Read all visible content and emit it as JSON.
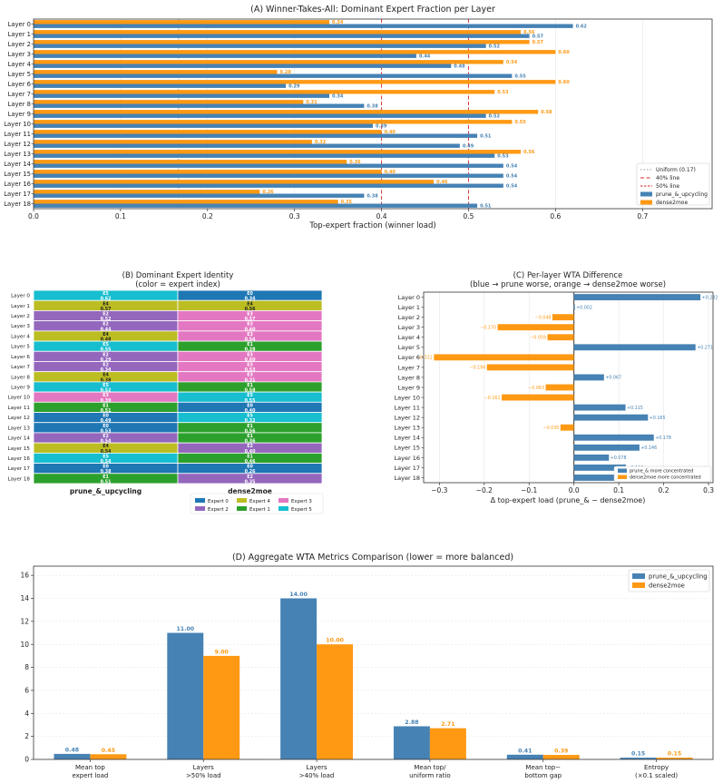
{
  "colors": {
    "prune": "#4682b4",
    "dense": "#ff9914",
    "uniform_line": "#999999",
    "threshold_line": "#d62728",
    "experts": [
      "#1f77b4",
      "#2ca02c",
      "#9467bd",
      "#e377c2",
      "#bcbd22",
      "#17becf"
    ]
  },
  "chart_data": [
    {
      "id": "A",
      "type": "bar",
      "orientation": "horizontal",
      "title": "(A)  Winner-Takes-All: Dominant Expert Fraction per Layer",
      "xlabel": "Top-expert fraction (winner load)",
      "xlim": [
        0,
        0.78
      ],
      "xticks": [
        "0.0",
        "0.1",
        "0.2",
        "0.3",
        "0.4",
        "0.5",
        "0.6",
        "0.7"
      ],
      "xtick_values": [
        0,
        0.1,
        0.2,
        0.3,
        0.4,
        0.5,
        0.6,
        0.7
      ],
      "grid": "x",
      "legend_position": "lower-right",
      "categories": [
        "Layer 0",
        "Layer 1",
        "Layer 2",
        "Layer 3",
        "Layer 4",
        "Layer 5",
        "Layer 6",
        "Layer 7",
        "Layer 8",
        "Layer 9",
        "Layer 10",
        "Layer 11",
        "Layer 12",
        "Layer 13",
        "Layer 14",
        "Layer 15",
        "Layer 16",
        "Layer 17",
        "Layer 18"
      ],
      "series": [
        {
          "name": "prune_&_upcycling",
          "values": [
            0.62,
            0.57,
            0.52,
            0.44,
            0.48,
            0.55,
            0.29,
            0.34,
            0.38,
            0.52,
            0.39,
            0.51,
            0.49,
            0.53,
            0.54,
            0.54,
            0.54,
            0.38,
            0.51
          ],
          "labels": [
            "0.62",
            "0.57",
            "0.52",
            "0.44",
            "0.48",
            "0.55",
            "0.29",
            "0.34",
            "0.38",
            "0.52",
            "0.39",
            "0.51",
            "0.49",
            "0.53",
            "0.54",
            "0.54",
            "0.54",
            "0.38",
            "0.51"
          ]
        },
        {
          "name": "dense2moe",
          "values": [
            0.34,
            0.56,
            0.57,
            0.6,
            0.54,
            0.28,
            0.6,
            0.53,
            0.31,
            0.58,
            0.55,
            0.4,
            0.32,
            0.56,
            0.36,
            0.4,
            0.46,
            0.26,
            0.35
          ],
          "labels": [
            "0.34",
            "0.56",
            "0.57",
            "0.60",
            "0.54",
            "0.28",
            "0.60",
            "0.53",
            "0.31",
            "0.58",
            "0.55",
            "0.40",
            "0.32",
            "0.56",
            "0.36",
            "0.40",
            "0.46",
            "0.26",
            "0.35"
          ]
        }
      ],
      "reference_lines": [
        {
          "name": "Uniform (0.17)",
          "x": 0.1667,
          "style": "dotted"
        },
        {
          "name": "40% line",
          "x": 0.4,
          "style": "dashed"
        },
        {
          "name": "50% line",
          "x": 0.5,
          "style": "dashed"
        }
      ]
    },
    {
      "id": "B",
      "type": "heatmap",
      "title": "(B)  Dominant Expert Identity",
      "subtitle": "(color = expert index)",
      "rows": [
        "Layer 0",
        "Layer 1",
        "Layer 2",
        "Layer 3",
        "Layer 4",
        "Layer 5",
        "Layer 6",
        "Layer 7",
        "Layer 8",
        "Layer 9",
        "Layer 10",
        "Layer 11",
        "Layer 12",
        "Layer 13",
        "Layer 14",
        "Layer 15",
        "Layer 16",
        "Layer 17",
        "Layer 18"
      ],
      "columns": [
        "prune_&_upcycling",
        "dense2moe"
      ],
      "cells": [
        [
          {
            "expert": 5,
            "label": "E5",
            "value": "0.62"
          },
          {
            "expert": 0,
            "label": "E0",
            "value": "0.34"
          }
        ],
        [
          {
            "expert": 4,
            "label": "E4",
            "value": "0.57"
          },
          {
            "expert": 4,
            "label": "E4",
            "value": "0.56"
          }
        ],
        [
          {
            "expert": 2,
            "label": "E2",
            "value": "0.52"
          },
          {
            "expert": 3,
            "label": "E3",
            "value": "0.57"
          }
        ],
        [
          {
            "expert": 2,
            "label": "E2",
            "value": "0.44"
          },
          {
            "expert": 3,
            "label": "E3",
            "value": "0.60"
          }
        ],
        [
          {
            "expert": 4,
            "label": "E4",
            "value": "0.48"
          },
          {
            "expert": 3,
            "label": "E3",
            "value": "0.54"
          }
        ],
        [
          {
            "expert": 5,
            "label": "E5",
            "value": "0.55"
          },
          {
            "expert": 1,
            "label": "E1",
            "value": "0.28"
          }
        ],
        [
          {
            "expert": 2,
            "label": "E2",
            "value": "0.29"
          },
          {
            "expert": 3,
            "label": "E3",
            "value": "0.60"
          }
        ],
        [
          {
            "expert": 2,
            "label": "E2",
            "value": "0.34"
          },
          {
            "expert": 3,
            "label": "E3",
            "value": "0.53"
          }
        ],
        [
          {
            "expert": 4,
            "label": "E4",
            "value": "0.38"
          },
          {
            "expert": 3,
            "label": "E3",
            "value": "0.31"
          }
        ],
        [
          {
            "expert": 5,
            "label": "E5",
            "value": "0.52"
          },
          {
            "expert": 1,
            "label": "E1",
            "value": "0.58"
          }
        ],
        [
          {
            "expert": 3,
            "label": "E3",
            "value": "0.39"
          },
          {
            "expert": 5,
            "label": "E5",
            "value": "0.55"
          }
        ],
        [
          {
            "expert": 1,
            "label": "E1",
            "value": "0.51"
          },
          {
            "expert": 0,
            "label": "E0",
            "value": "0.40"
          }
        ],
        [
          {
            "expert": 0,
            "label": "E0",
            "value": "0.49"
          },
          {
            "expert": 5,
            "label": "E5",
            "value": "0.32"
          }
        ],
        [
          {
            "expert": 0,
            "label": "E0",
            "value": "0.53"
          },
          {
            "expert": 1,
            "label": "E1",
            "value": "0.56"
          }
        ],
        [
          {
            "expert": 2,
            "label": "E2",
            "value": "0.54"
          },
          {
            "expert": 1,
            "label": "E1",
            "value": "0.36"
          }
        ],
        [
          {
            "expert": 4,
            "label": "E4",
            "value": "0.54"
          },
          {
            "expert": 2,
            "label": "E2",
            "value": "0.40"
          }
        ],
        [
          {
            "expert": 5,
            "label": "E5",
            "value": "0.54"
          },
          {
            "expert": 1,
            "label": "E1",
            "value": "0.46"
          }
        ],
        [
          {
            "expert": 0,
            "label": "E0",
            "value": "0.38"
          },
          {
            "expert": 0,
            "label": "E0",
            "value": "0.26"
          }
        ],
        [
          {
            "expert": 1,
            "label": "E1",
            "value": "0.51"
          },
          {
            "expert": 2,
            "label": "E2",
            "value": "0.35"
          }
        ]
      ],
      "legend": [
        "Expert 0",
        "Expert 1",
        "Expert 2",
        "Expert 3",
        "Expert 4",
        "Expert 5"
      ],
      "legend_position": "bottom"
    },
    {
      "id": "C",
      "type": "bar",
      "orientation": "horizontal",
      "title": "(C)  Per-layer WTA Difference",
      "subtitle": "(blue → prune worse, orange → dense2moe worse)",
      "xlabel": "Δ top-expert load  (prune_& − dense2moe)",
      "xlim": [
        -0.335,
        0.31
      ],
      "xticks": [
        "−0.3",
        "−0.2",
        "−0.1",
        "0.0",
        "0.1",
        "0.2",
        "0.3"
      ],
      "xtick_values": [
        -0.3,
        -0.2,
        -0.1,
        0,
        0.1,
        0.2,
        0.3
      ],
      "grid": "x",
      "legend_position": "lower-right",
      "legend": [
        "prune_& more concentrated",
        "dense2moe more concentrated"
      ],
      "categories": [
        "Layer 0",
        "Layer 1",
        "Layer 2",
        "Layer 3",
        "Layer 4",
        "Layer 5",
        "Layer 6",
        "Layer 7",
        "Layer 8",
        "Layer 9",
        "Layer 10",
        "Layer 11",
        "Layer 12",
        "Layer 13",
        "Layer 14",
        "Layer 15",
        "Layer 16",
        "Layer 17",
        "Layer 18"
      ],
      "values": [
        0.282,
        0.002,
        -0.048,
        -0.17,
        -0.059,
        0.271,
        -0.312,
        -0.194,
        0.067,
        -0.063,
        -0.161,
        0.115,
        0.165,
        -0.03,
        0.178,
        0.146,
        0.078,
        0.116,
        0.158
      ],
      "labels": [
        "+0.282",
        "+0.002",
        "−0.048",
        "−0.170",
        "−0.059",
        "+0.271",
        "−0.312",
        "−0.194",
        "+0.067",
        "−0.063",
        "−0.161",
        "+0.115",
        "+0.165",
        "−0.030",
        "+0.178",
        "+0.146",
        "+0.078",
        "+0.116",
        ""
      ]
    },
    {
      "id": "D",
      "type": "bar",
      "title": "(D)  Aggregate WTA Metrics Comparison  (lower = more balanced)",
      "ylim": [
        0,
        16.8
      ],
      "yticks": [
        "0",
        "2",
        "4",
        "6",
        "8",
        "10",
        "12",
        "14",
        "16"
      ],
      "ytick_values": [
        0,
        2,
        4,
        6,
        8,
        10,
        12,
        14,
        16
      ],
      "grid": "y",
      "legend_position": "top-right",
      "categories": [
        [
          "Mean top",
          "expert load"
        ],
        [
          "Layers",
          ">50% load"
        ],
        [
          "Layers",
          ">40% load"
        ],
        [
          "Mean top/",
          "uniform ratio"
        ],
        [
          "Mean top−",
          "bottom gap"
        ],
        [
          "Entropy",
          "(×0.1 scaled)"
        ]
      ],
      "series": [
        {
          "name": "prune_&_upcycling",
          "values": [
            0.48,
            11.0,
            14.0,
            2.88,
            0.41,
            0.15
          ],
          "labels": [
            "0.48",
            "11.00",
            "14.00",
            "2.88",
            "0.41",
            "0.15"
          ]
        },
        {
          "name": "dense2moe",
          "values": [
            0.45,
            9.0,
            10.0,
            2.71,
            0.39,
            0.15
          ],
          "labels": [
            "0.45",
            "9.00",
            "10.00",
            "2.71",
            "0.39",
            "0.15"
          ]
        }
      ]
    }
  ]
}
